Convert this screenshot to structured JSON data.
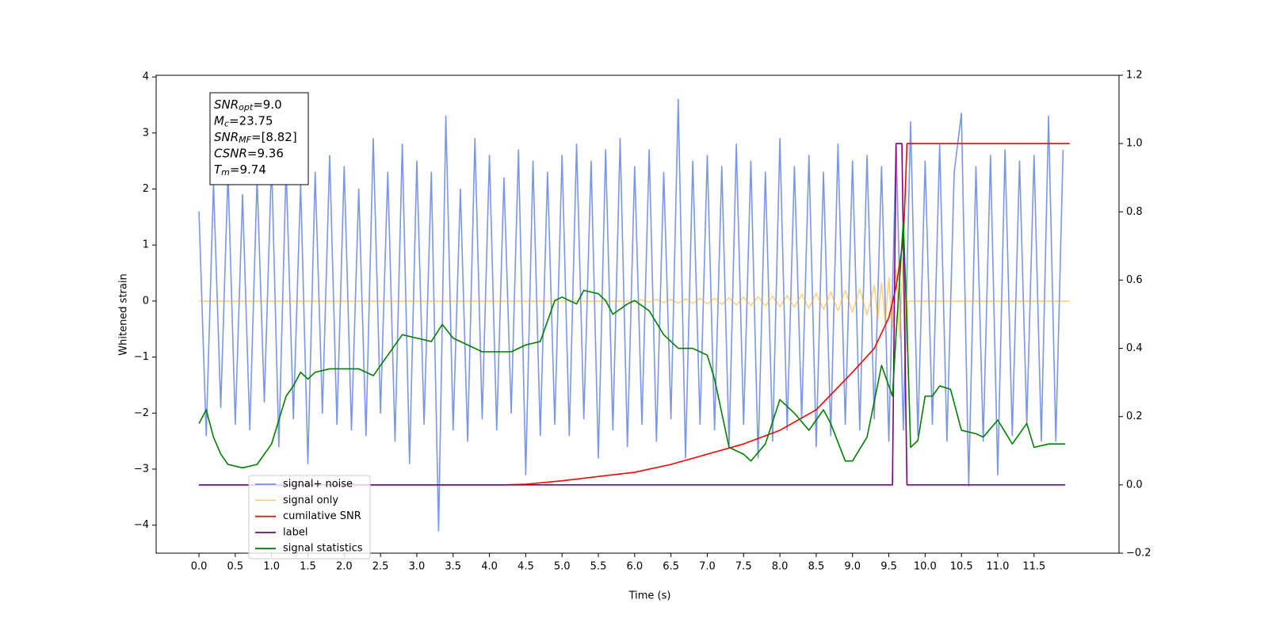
{
  "chart_data": {
    "type": "line",
    "xlabel": "Time (s)",
    "ylabel": "Whitened strain",
    "xlim": [
      -0.59,
      12.67
    ],
    "xticks": [
      {
        "value": 0,
        "label": "0.0"
      },
      0.5,
      {
        "value": 1,
        "label": "1.0"
      },
      1.5,
      {
        "value": 2,
        "label": "2.0"
      },
      2.5,
      {
        "value": 3,
        "label": "3.0"
      },
      3.5,
      {
        "value": 4,
        "label": "4.0"
      },
      4.5,
      {
        "value": 5,
        "label": "5.0"
      },
      5.5,
      {
        "value": 6,
        "label": "6.0"
      },
      6.5,
      {
        "value": 7,
        "label": "7.0"
      },
      7.5,
      {
        "value": 8,
        "label": "8.0"
      },
      8.5,
      {
        "value": 9,
        "label": "9.0"
      },
      9.5,
      {
        "value": 10,
        "label": "10.0"
      },
      10.5,
      {
        "value": 11,
        "label": "11.0"
      },
      11.5
    ],
    "ylim": [
      -4.5,
      4.03
    ],
    "yticks": [
      {
        "value": -4,
        "label": "−4"
      },
      {
        "value": -3,
        "label": "−3"
      },
      {
        "value": -2,
        "label": "−2"
      },
      {
        "value": -1,
        "label": "−1"
      },
      0,
      1,
      2,
      3,
      4
    ],
    "y2lim": [
      -0.2,
      1.2
    ],
    "y2ticks": [
      {
        "value": -0.2,
        "label": "−0.2"
      },
      {
        "value": 0,
        "label": "0.0"
      },
      0.2,
      0.4,
      0.6,
      0.8,
      {
        "value": 1,
        "label": "1.0"
      },
      1.2
    ],
    "legend": "lower left",
    "annotations": [
      {
        "base": "SNR",
        "sub": "opt",
        "rest": "=9.0"
      },
      {
        "base": "M",
        "sub": "c",
        "rest": "=23.75"
      },
      {
        "base": "SNR",
        "sub": "MF",
        "rest": "=[8.82]"
      },
      {
        "base": "CSNR",
        "rest": "=9.36"
      },
      {
        "base": "T",
        "sub": "m",
        "rest": "=9.74"
      }
    ],
    "series": [
      {
        "name": "signal+ noise",
        "color": "#4169e1",
        "alpha": 0.7,
        "x": [
          0,
          0.1,
          0.2,
          0.3,
          0.4,
          0.5,
          0.6,
          0.7,
          0.8,
          0.9,
          1,
          1.1,
          1.2,
          1.3,
          1.4,
          1.5,
          1.6,
          1.7,
          1.8,
          1.9,
          2,
          2.1,
          2.2,
          2.3,
          2.4,
          2.5,
          2.6,
          2.7,
          2.8,
          2.9,
          3,
          3.1,
          3.2,
          3.3,
          3.4,
          3.5,
          3.6,
          3.7,
          3.8,
          3.9,
          4,
          4.1,
          4.2,
          4.3,
          4.4,
          4.5,
          4.6,
          4.7,
          4.8,
          4.9,
          5,
          5.1,
          5.2,
          5.3,
          5.4,
          5.5,
          5.6,
          5.7,
          5.8,
          5.9,
          6,
          6.1,
          6.2,
          6.3,
          6.4,
          6.5,
          6.6,
          6.7,
          6.8,
          6.9,
          7,
          7.1,
          7.2,
          7.3,
          7.4,
          7.5,
          7.6,
          7.7,
          7.8,
          7.9,
          8,
          8.1,
          8.2,
          8.3,
          8.4,
          8.5,
          8.6,
          8.7,
          8.8,
          8.9,
          9,
          9.1,
          9.2,
          9.3,
          9.4,
          9.5,
          9.6,
          9.7,
          9.8,
          9.9,
          10,
          10.1,
          10.2,
          10.3,
          10.4,
          10.5,
          10.6,
          10.7,
          10.8,
          10.9,
          11,
          11.1,
          11.2,
          11.3,
          11.4,
          11.5,
          11.6,
          11.7,
          11.8,
          11.9
        ],
        "values": [
          1.6,
          -2.4,
          2.1,
          -1.9,
          2.3,
          -2.2,
          1.9,
          -2.3,
          2.2,
          -1.8,
          2.5,
          -2.6,
          2.4,
          -2.1,
          2.1,
          -2.9,
          2.3,
          -2.0,
          2.6,
          -2.2,
          2.4,
          -2.3,
          2.0,
          -2.4,
          2.9,
          -2.0,
          2.3,
          -2.5,
          2.8,
          -2.9,
          2.5,
          -2.2,
          2.3,
          -4.1,
          3.3,
          -2.3,
          2.0,
          -2.5,
          2.9,
          -2.1,
          2.6,
          -2.3,
          2.2,
          -2.0,
          2.7,
          -3.1,
          2.5,
          -2.4,
          2.3,
          -2.2,
          2.6,
          -2.4,
          2.8,
          -2.1,
          2.5,
          -2.8,
          2.7,
          -2.3,
          2.9,
          -2.6,
          2.4,
          -2.2,
          2.7,
          -2.5,
          2.3,
          -2.1,
          3.6,
          -2.8,
          2.5,
          -2.2,
          2.6,
          -2.3,
          2.4,
          -2.6,
          2.8,
          -2.2,
          2.5,
          -2.8,
          2.3,
          -2.5,
          2.9,
          -2.3,
          2.4,
          -2.1,
          2.6,
          -2.6,
          2.3,
          -2.4,
          2.8,
          -2.2,
          2.5,
          -2.3,
          2.6,
          -2.1,
          2.4,
          -2.5,
          2.8,
          -2.3,
          3.2,
          -2.4,
          2.5,
          -2.2,
          2.8,
          -2.5,
          2.3,
          3.35,
          -3.3,
          2.4,
          -2.5,
          2.6,
          -3.1,
          2.7,
          -2.4,
          2.5,
          -2.2,
          2.6,
          -2.5,
          3.3,
          -2.5,
          2.7
        ]
      },
      {
        "name": "signal only",
        "color": "#ffa500",
        "alpha": 0.5,
        "x": [
          0,
          6.0,
          6.1,
          6.2,
          6.3,
          6.4,
          6.5,
          6.6,
          6.7,
          6.8,
          6.9,
          7.0,
          7.1,
          7.2,
          7.3,
          7.4,
          7.5,
          7.6,
          7.7,
          7.8,
          7.9,
          8.0,
          8.1,
          8.2,
          8.3,
          8.4,
          8.5,
          8.6,
          8.7,
          8.8,
          8.9,
          9.0,
          9.1,
          9.2,
          9.3,
          9.35,
          9.4,
          9.45,
          9.5,
          9.55,
          9.6,
          9.65,
          9.7,
          9.75,
          9.76,
          11.99
        ],
        "values": [
          0,
          0,
          0.02,
          -0.02,
          0.03,
          -0.03,
          0.03,
          -0.04,
          0.04,
          -0.04,
          0.05,
          -0.05,
          0.05,
          -0.06,
          0.06,
          -0.07,
          0.07,
          -0.08,
          0.08,
          -0.09,
          0.09,
          -0.1,
          0.1,
          -0.11,
          0.12,
          -0.13,
          0.14,
          -0.15,
          0.16,
          -0.17,
          0.19,
          -0.2,
          0.22,
          -0.25,
          0.28,
          -0.3,
          0.33,
          -0.37,
          0.42,
          -0.48,
          0.56,
          -0.66,
          0.8,
          -0.9,
          0,
          0
        ]
      },
      {
        "name": "cumilative SNR",
        "color": "#ff0000",
        "alpha": 1,
        "axis": "y2",
        "x": [
          0,
          4.2,
          4.5,
          5.0,
          6.0,
          6.5,
          7.0,
          7.5,
          8.0,
          8.5,
          9.0,
          9.3,
          9.5,
          9.6,
          9.7,
          9.73,
          9.75,
          11.99
        ],
        "values": [
          0,
          0,
          0.002,
          0.012,
          0.037,
          0.06,
          0.09,
          0.12,
          0.16,
          0.22,
          0.33,
          0.4,
          0.49,
          0.58,
          0.72,
          0.88,
          1.0,
          1.0
        ]
      },
      {
        "name": "label",
        "color": "#800080",
        "alpha": 1,
        "axis": "y2",
        "x": [
          0,
          9.55,
          9.6,
          9.68,
          9.75,
          11.93
        ],
        "values": [
          0,
          0,
          1,
          1,
          0,
          0
        ]
      },
      {
        "name": "signal statistics",
        "color": "#008000",
        "alpha": 1,
        "axis": "y2",
        "x": [
          0,
          0.1,
          0.2,
          0.3,
          0.4,
          0.6,
          0.8,
          1.0,
          1.1,
          1.2,
          1.3,
          1.4,
          1.5,
          1.6,
          1.8,
          2.0,
          2.2,
          2.4,
          2.6,
          2.8,
          3.0,
          3.2,
          3.35,
          3.5,
          3.7,
          3.9,
          4.1,
          4.3,
          4.5,
          4.7,
          4.9,
          5.0,
          5.2,
          5.3,
          5.5,
          5.6,
          5.7,
          5.9,
          6.0,
          6.2,
          6.4,
          6.6,
          6.8,
          7.0,
          7.1,
          7.3,
          7.5,
          7.6,
          7.8,
          8.0,
          8.2,
          8.4,
          8.6,
          8.7,
          8.9,
          9.0,
          9.2,
          9.4,
          9.55,
          9.6,
          9.7,
          9.75,
          9.8,
          9.9,
          10.0,
          10.1,
          10.2,
          10.35,
          10.5,
          10.7,
          10.8,
          11.0,
          11.2,
          11.4,
          11.5,
          11.7,
          11.93
        ],
        "values": [
          0.18,
          0.22,
          0.14,
          0.09,
          0.06,
          0.05,
          0.06,
          0.12,
          0.19,
          0.26,
          0.29,
          0.33,
          0.31,
          0.33,
          0.34,
          0.34,
          0.34,
          0.32,
          0.38,
          0.44,
          0.43,
          0.42,
          0.47,
          0.43,
          0.41,
          0.39,
          0.39,
          0.39,
          0.41,
          0.42,
          0.54,
          0.55,
          0.53,
          0.57,
          0.56,
          0.54,
          0.5,
          0.53,
          0.54,
          0.51,
          0.44,
          0.4,
          0.4,
          0.38,
          0.31,
          0.11,
          0.09,
          0.07,
          0.12,
          0.25,
          0.21,
          0.16,
          0.22,
          0.18,
          0.07,
          0.07,
          0.14,
          0.35,
          0.26,
          0.44,
          0.77,
          0.47,
          0.11,
          0.13,
          0.26,
          0.26,
          0.29,
          0.28,
          0.16,
          0.15,
          0.14,
          0.19,
          0.12,
          0.18,
          0.11,
          0.12,
          0.12
        ]
      }
    ]
  }
}
